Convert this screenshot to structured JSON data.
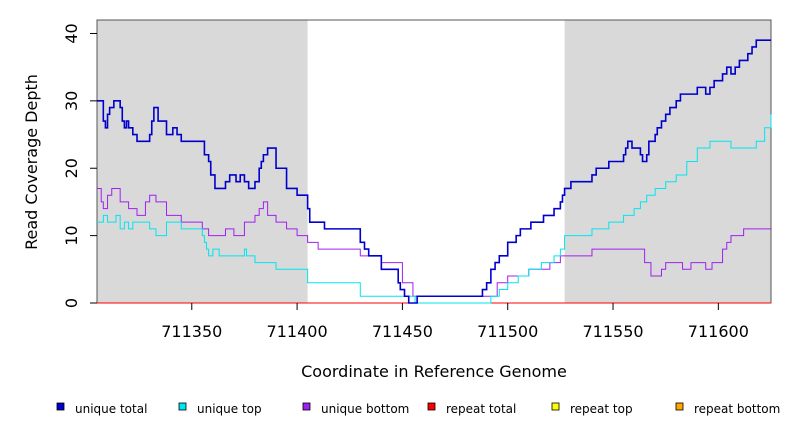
{
  "chart_data": {
    "type": "line",
    "title": "",
    "xlabel": "Coordinate in Reference Genome",
    "ylabel": "Read Coverage Depth",
    "xlim": [
      711305,
      711625
    ],
    "ylim": [
      0,
      42
    ],
    "xticks": [
      711350,
      711400,
      711450,
      711500,
      711550,
      711600
    ],
    "yticks": [
      0,
      10,
      20,
      30,
      40
    ],
    "shaded_regions": [
      [
        711305,
        711405
      ],
      [
        711527,
        711625
      ]
    ],
    "shade_color": "#d9d9d9",
    "legend_position": "bottom",
    "series": [
      {
        "name": "unique total",
        "color": "#0000cd",
        "x": [
          711305,
          711308,
          711309,
          711310,
          711311,
          711313,
          711316,
          711317,
          711318,
          711319,
          711320,
          711322,
          711324,
          711330,
          711331,
          711332,
          711334,
          711338,
          711341,
          711343,
          711345,
          711356,
          711358,
          711359,
          711361,
          711366,
          711368,
          711371,
          711373,
          711375,
          711377,
          711380,
          711382,
          711383,
          711384,
          711386,
          711390,
          711395,
          711400,
          711405,
          711406,
          711413,
          711430,
          711432,
          711434,
          711440,
          711448,
          711449,
          711451,
          711453,
          711457,
          711460,
          711463,
          711488,
          711490,
          711492,
          711494,
          711496,
          711500,
          711504,
          711506,
          711511,
          711517,
          711522,
          711525,
          711526,
          711527,
          711528,
          711530,
          711540,
          711542,
          711548,
          711555,
          711556,
          711557,
          711559,
          711563,
          711564,
          711566,
          711567,
          711570,
          711571,
          711573,
          711575,
          711577,
          711580,
          711582,
          711590,
          711594,
          711596,
          711598,
          711602,
          711604,
          711606,
          711608,
          711610,
          711614,
          711616,
          711618,
          711622,
          711624,
          711625
        ],
        "y": [
          30,
          27,
          26,
          28,
          29,
          30,
          29,
          27,
          26,
          27,
          26,
          25,
          24,
          25,
          27,
          29,
          27,
          25,
          26,
          25,
          24,
          22,
          21,
          19,
          17,
          18,
          19,
          18,
          19,
          18,
          17,
          18,
          20,
          21,
          22,
          23,
          20,
          17,
          16,
          14,
          12,
          11,
          9,
          8,
          7,
          5,
          3,
          2,
          1,
          0,
          1,
          1,
          1,
          2,
          3,
          5,
          6,
          7,
          9,
          10,
          11,
          12,
          13,
          14,
          15,
          16,
          17,
          17,
          18,
          19,
          20,
          21,
          22,
          23,
          24,
          23,
          22,
          21,
          22,
          24,
          25,
          26,
          27,
          28,
          29,
          30,
          31,
          32,
          31,
          32,
          33,
          34,
          35,
          34,
          35,
          36,
          37,
          38,
          39,
          39,
          39,
          39
        ],
        "line_width": 1.6
      },
      {
        "name": "unique top",
        "color": "#00e5ee",
        "x": [
          711305,
          711308,
          711310,
          711314,
          711316,
          711318,
          711320,
          711322,
          711330,
          711333,
          711338,
          711345,
          711355,
          711356,
          711357,
          711358,
          711360,
          711363,
          711375,
          711376,
          711378,
          711380,
          711390,
          711400,
          711405,
          711430,
          711432,
          711456,
          711488,
          711492,
          711496,
          711500,
          711505,
          711510,
          711516,
          711522,
          711525,
          711527,
          711540,
          711548,
          711555,
          711560,
          711563,
          711566,
          711570,
          711575,
          711580,
          711585,
          711590,
          711596,
          711600,
          711606,
          711612,
          711618,
          711622,
          711625
        ],
        "y": [
          12,
          13,
          12,
          13,
          11,
          12,
          11,
          12,
          11,
          10,
          12,
          11,
          10,
          9,
          8,
          7,
          8,
          7,
          8,
          7,
          7,
          6,
          5,
          5,
          3,
          1,
          1,
          0,
          0,
          1,
          2,
          3,
          4,
          5,
          6,
          7,
          8,
          10,
          11,
          12,
          13,
          14,
          15,
          16,
          17,
          18,
          19,
          21,
          23,
          24,
          24,
          23,
          23,
          24,
          26,
          28
        ],
        "line_width": 1.0
      },
      {
        "name": "unique bottom",
        "color": "#a020f0",
        "x": [
          711305,
          711307,
          711308,
          711310,
          711312,
          711316,
          711320,
          711324,
          711328,
          711330,
          711333,
          711338,
          711345,
          711355,
          711358,
          711360,
          711366,
          711370,
          711375,
          711380,
          711382,
          711384,
          711386,
          711390,
          711395,
          711400,
          711405,
          711410,
          711430,
          711440,
          711450,
          711455,
          711470,
          711490,
          711495,
          711500,
          711510,
          711520,
          711525,
          711527,
          711540,
          711560,
          711565,
          711568,
          711573,
          711575,
          711580,
          711583,
          711587,
          711590,
          711594,
          711597,
          711602,
          711604,
          711606,
          711612,
          711625
        ],
        "y": [
          17,
          15,
          14,
          16,
          17,
          15,
          14,
          13,
          15,
          16,
          15,
          13,
          12,
          11,
          10,
          10,
          11,
          10,
          12,
          13,
          14,
          15,
          13,
          12,
          11,
          10,
          9,
          8,
          7,
          6,
          3,
          1,
          1,
          1,
          3,
          4,
          5,
          6,
          7,
          7,
          8,
          8,
          6,
          4,
          5,
          6,
          6,
          5,
          6,
          6,
          5,
          6,
          8,
          9,
          10,
          11,
          11
        ],
        "line_width": 1.0
      },
      {
        "name": "repeat total",
        "color": "#ff0000",
        "x": [
          711305,
          711625
        ],
        "y": [
          0,
          0
        ],
        "line_width": 1.0
      },
      {
        "name": "repeat top",
        "color": "#ffff00",
        "x": [
          711305,
          711625
        ],
        "y": [
          0,
          0
        ],
        "line_width": 1.0
      },
      {
        "name": "repeat bottom",
        "color": "#ffa500",
        "x": [
          711305,
          711625
        ],
        "y": [
          0,
          0
        ],
        "line_width": 1.0
      }
    ]
  }
}
